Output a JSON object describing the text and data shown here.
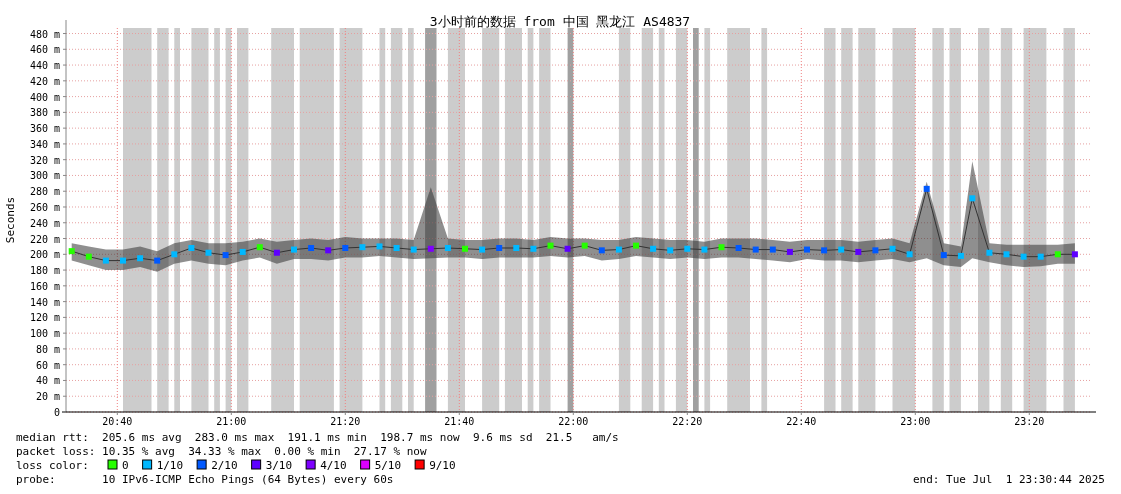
{
  "chart_data": {
    "type": "scatter",
    "marker": "square",
    "title": "3小时前的数据 from 中国 黑龙江 AS4837",
    "ylabel": "Seconds",
    "legend_title": "loss color:",
    "legend": "bottom",
    "grid": true,
    "xlim": [
      "2025-07-01T20:31",
      "2025-07-01T23:31"
    ],
    "xticks": [
      {
        "value": "2025-07-01T20:40",
        "label": "20:40"
      },
      {
        "value": "2025-07-01T21:00",
        "label": "21:00"
      },
      {
        "value": "2025-07-01T21:20",
        "label": "21:20"
      },
      {
        "value": "2025-07-01T21:40",
        "label": "21:40"
      },
      {
        "value": "2025-07-01T22:00",
        "label": "22:00"
      },
      {
        "value": "2025-07-01T22:20",
        "label": "22:20"
      },
      {
        "value": "2025-07-01T22:40",
        "label": "22:40"
      },
      {
        "value": "2025-07-01T23:00",
        "label": "23:00"
      },
      {
        "value": "2025-07-01T23:20",
        "label": "23:20"
      }
    ],
    "ylim": [
      0,
      487
    ],
    "yticks": [
      0,
      {
        "value": 20,
        "label": "20 m"
      },
      {
        "value": 40,
        "label": "40 m"
      },
      {
        "value": 60,
        "label": "60 m"
      },
      {
        "value": 80,
        "label": "80 m"
      },
      {
        "value": 100,
        "label": "100 m"
      },
      {
        "value": 120,
        "label": "120 m"
      },
      {
        "value": 140,
        "label": "140 m"
      },
      {
        "value": 160,
        "label": "160 m"
      },
      {
        "value": 180,
        "label": "180 m"
      },
      {
        "value": 200,
        "label": "200 m"
      },
      {
        "value": 220,
        "label": "220 m"
      },
      {
        "value": 240,
        "label": "240 m"
      },
      {
        "value": 260,
        "label": "260 m"
      },
      {
        "value": 280,
        "label": "280 m"
      },
      {
        "value": 300,
        "label": "300 m"
      },
      {
        "value": 320,
        "label": "320 m"
      },
      {
        "value": 340,
        "label": "340 m"
      },
      {
        "value": 360,
        "label": "360 m"
      },
      {
        "value": 380,
        "label": "380 m"
      },
      {
        "value": 400,
        "label": "400 m"
      },
      {
        "value": 420,
        "label": "420 m"
      },
      {
        "value": 440,
        "label": "440 m"
      },
      {
        "value": 460,
        "label": "460 m"
      },
      {
        "value": 480,
        "label": "480 m"
      }
    ],
    "bands": [
      {
        "axis": "x",
        "from": "2025-07-01T20:41",
        "to": "2025-07-01T20:46",
        "color": "#cccccc"
      },
      {
        "axis": "x",
        "from": "2025-07-01T20:47",
        "to": "2025-07-01T20:49",
        "color": "#cccccc"
      },
      {
        "axis": "x",
        "from": "2025-07-01T20:50",
        "to": "2025-07-01T20:51",
        "color": "#cccccc"
      },
      {
        "axis": "x",
        "from": "2025-07-01T20:53",
        "to": "2025-07-01T20:56",
        "color": "#cccccc"
      },
      {
        "axis": "x",
        "from": "2025-07-01T20:57",
        "to": "2025-07-01T20:58",
        "color": "#cccccc"
      },
      {
        "axis": "x",
        "from": "2025-07-01T20:59",
        "to": "2025-07-01T21:00",
        "color": "#cccccc"
      },
      {
        "axis": "x",
        "from": "2025-07-01T21:01",
        "to": "2025-07-01T21:03",
        "color": "#cccccc"
      },
      {
        "axis": "x",
        "from": "2025-07-01T21:07",
        "to": "2025-07-01T21:11",
        "color": "#cccccc"
      },
      {
        "axis": "x",
        "from": "2025-07-01T21:12",
        "to": "2025-07-01T21:18",
        "color": "#cccccc"
      },
      {
        "axis": "x",
        "from": "2025-07-01T21:19",
        "to": "2025-07-01T21:23",
        "color": "#cccccc"
      },
      {
        "axis": "x",
        "from": "2025-07-01T21:26",
        "to": "2025-07-01T21:27",
        "color": "#cccccc"
      },
      {
        "axis": "x",
        "from": "2025-07-01T21:28",
        "to": "2025-07-01T21:30",
        "color": "#cccccc"
      },
      {
        "axis": "x",
        "from": "2025-07-01T21:31",
        "to": "2025-07-01T21:32",
        "color": "#cccccc"
      },
      {
        "axis": "x",
        "from": "2025-07-01T21:34",
        "to": "2025-07-01T21:36",
        "color": "#a0a0a0"
      },
      {
        "axis": "x",
        "from": "2025-07-01T21:38",
        "to": "2025-07-01T21:41",
        "color": "#cccccc"
      },
      {
        "axis": "x",
        "from": "2025-07-01T21:44",
        "to": "2025-07-01T21:47",
        "color": "#cccccc"
      },
      {
        "axis": "x",
        "from": "2025-07-01T21:48",
        "to": "2025-07-01T21:51",
        "color": "#cccccc"
      },
      {
        "axis": "x",
        "from": "2025-07-01T21:52",
        "to": "2025-07-01T21:53",
        "color": "#cccccc"
      },
      {
        "axis": "x",
        "from": "2025-07-01T21:54",
        "to": "2025-07-01T21:56",
        "color": "#cccccc"
      },
      {
        "axis": "x",
        "from": "2025-07-01T21:59",
        "to": "2025-07-01T22:00",
        "color": "#a0a0a0"
      },
      {
        "axis": "x",
        "from": "2025-07-01T22:08",
        "to": "2025-07-01T22:10",
        "color": "#cccccc"
      },
      {
        "axis": "x",
        "from": "2025-07-01T22:12",
        "to": "2025-07-01T22:14",
        "color": "#cccccc"
      },
      {
        "axis": "x",
        "from": "2025-07-01T22:15",
        "to": "2025-07-01T22:16",
        "color": "#cccccc"
      },
      {
        "axis": "x",
        "from": "2025-07-01T22:18",
        "to": "2025-07-01T22:20",
        "color": "#cccccc"
      },
      {
        "axis": "x",
        "from": "2025-07-01T22:21",
        "to": "2025-07-01T22:22",
        "color": "#a0a0a0"
      },
      {
        "axis": "x",
        "from": "2025-07-01T22:23",
        "to": "2025-07-01T22:24",
        "color": "#cccccc"
      },
      {
        "axis": "x",
        "from": "2025-07-01T22:27",
        "to": "2025-07-01T22:31",
        "color": "#cccccc"
      },
      {
        "axis": "x",
        "from": "2025-07-01T22:33",
        "to": "2025-07-01T22:34",
        "color": "#cccccc"
      },
      {
        "axis": "x",
        "from": "2025-07-01T22:44",
        "to": "2025-07-01T22:46",
        "color": "#cccccc"
      },
      {
        "axis": "x",
        "from": "2025-07-01T22:47",
        "to": "2025-07-01T22:49",
        "color": "#cccccc"
      },
      {
        "axis": "x",
        "from": "2025-07-01T22:50",
        "to": "2025-07-01T22:53",
        "color": "#cccccc"
      },
      {
        "axis": "x",
        "from": "2025-07-01T22:56",
        "to": "2025-07-01T23:00",
        "color": "#cccccc"
      },
      {
        "axis": "x",
        "from": "2025-07-01T23:03",
        "to": "2025-07-01T23:05",
        "color": "#cccccc"
      },
      {
        "axis": "x",
        "from": "2025-07-01T23:06",
        "to": "2025-07-01T23:08",
        "color": "#cccccc"
      },
      {
        "axis": "x",
        "from": "2025-07-01T23:11",
        "to": "2025-07-01T23:13",
        "color": "#cccccc"
      },
      {
        "axis": "x",
        "from": "2025-07-01T23:15",
        "to": "2025-07-01T23:17",
        "color": "#cccccc"
      },
      {
        "axis": "x",
        "from": "2025-07-01T23:19",
        "to": "2025-07-01T23:23",
        "color": "#cccccc"
      },
      {
        "axis": "x",
        "from": "2025-07-01T23:26",
        "to": "2025-07-01T23:28",
        "color": "#cccccc"
      }
    ],
    "series": [
      {
        "type": "line",
        "marker": "none",
        "color": "#333333",
        "x": [
          "2025-07-01T20:32",
          "2025-07-01T20:35",
          "2025-07-01T20:38",
          "2025-07-01T20:41",
          "2025-07-01T20:44",
          "2025-07-01T20:47",
          "2025-07-01T20:50",
          "2025-07-01T20:53",
          "2025-07-01T20:56",
          "2025-07-01T20:59",
          "2025-07-01T21:02",
          "2025-07-01T21:05",
          "2025-07-01T21:08",
          "2025-07-01T21:11",
          "2025-07-01T21:14",
          "2025-07-01T21:17",
          "2025-07-01T21:20",
          "2025-07-01T21:23",
          "2025-07-01T21:26",
          "2025-07-01T21:29",
          "2025-07-01T21:32",
          "2025-07-01T21:35",
          "2025-07-01T21:38",
          "2025-07-01T21:41",
          "2025-07-01T21:44",
          "2025-07-01T21:47",
          "2025-07-01T21:50",
          "2025-07-01T21:53",
          "2025-07-01T21:56",
          "2025-07-01T21:59",
          "2025-07-01T22:02",
          "2025-07-01T22:05",
          "2025-07-01T22:08",
          "2025-07-01T22:11",
          "2025-07-01T22:14",
          "2025-07-01T22:17",
          "2025-07-01T22:20",
          "2025-07-01T22:23",
          "2025-07-01T22:26",
          "2025-07-01T22:29",
          "2025-07-01T22:32",
          "2025-07-01T22:35",
          "2025-07-01T22:38",
          "2025-07-01T22:41",
          "2025-07-01T22:44",
          "2025-07-01T22:47",
          "2025-07-01T22:50",
          "2025-07-01T22:53",
          "2025-07-01T22:56",
          "2025-07-01T22:59",
          "2025-07-01T23:02",
          "2025-07-01T23:05",
          "2025-07-01T23:08",
          "2025-07-01T23:10",
          "2025-07-01T23:13",
          "2025-07-01T23:16",
          "2025-07-01T23:19",
          "2025-07-01T23:22",
          "2025-07-01T23:25",
          "2025-07-01T23:28"
        ],
        "values": [
          204,
          197,
          192,
          192,
          195,
          192,
          200,
          208,
          202,
          199,
          203,
          209,
          202,
          206,
          208,
          205,
          208,
          209,
          210,
          208,
          206,
          207,
          208,
          207,
          206,
          208,
          208,
          207,
          211,
          207,
          211,
          205,
          206,
          211,
          207,
          205,
          207,
          206,
          209,
          208,
          206,
          206,
          203,
          206,
          205,
          206,
          203,
          205,
          207,
          200,
          283,
          199,
          198,
          271,
          202,
          200,
          197,
          197,
          200,
          200
        ],
        "lower": [
          192,
          186,
          180,
          180,
          184,
          178,
          188,
          192,
          188,
          186,
          192,
          196,
          188,
          194,
          194,
          192,
          196,
          196,
          198,
          196,
          194,
          195,
          196,
          196,
          194,
          196,
          196,
          196,
          198,
          196,
          198,
          192,
          194,
          198,
          196,
          194,
          196,
          194,
          196,
          196,
          194,
          192,
          190,
          194,
          192,
          192,
          190,
          192,
          194,
          190,
          195,
          186,
          184,
          195,
          190,
          186,
          184,
          185,
          188,
          188
        ],
        "upper": [
          214,
          210,
          206,
          206,
          210,
          204,
          214,
          218,
          214,
          214,
          216,
          220,
          216,
          218,
          220,
          218,
          222,
          220,
          220,
          220,
          218,
          285,
          220,
          218,
          218,
          220,
          220,
          218,
          222,
          220,
          220,
          218,
          218,
          222,
          220,
          218,
          218,
          216,
          220,
          220,
          220,
          218,
          216,
          218,
          218,
          218,
          216,
          218,
          220,
          214,
          292,
          214,
          210,
          318,
          214,
          212,
          212,
          212,
          212,
          214
        ]
      },
      {
        "name": "0",
        "color": "#26ff00",
        "x": [
          "2025-07-01T20:32",
          "2025-07-01T20:35",
          "2025-07-01T21:05",
          "2025-07-01T21:41",
          "2025-07-01T21:56",
          "2025-07-01T22:02",
          "2025-07-01T22:11",
          "2025-07-01T22:26",
          "2025-07-01T23:25"
        ],
        "values": [
          204,
          197,
          209,
          207,
          211,
          211,
          211,
          209,
          200
        ]
      },
      {
        "name": "1/10",
        "color": "#00b8ff",
        "x": [
          "2025-07-01T20:38",
          "2025-07-01T20:41",
          "2025-07-01T20:44",
          "2025-07-01T20:50",
          "2025-07-01T20:53",
          "2025-07-01T20:56",
          "2025-07-01T21:02",
          "2025-07-01T21:11",
          "2025-07-01T21:23",
          "2025-07-01T21:26",
          "2025-07-01T21:29",
          "2025-07-01T21:32",
          "2025-07-01T21:38",
          "2025-07-01T21:44",
          "2025-07-01T21:50",
          "2025-07-01T21:53",
          "2025-07-01T22:08",
          "2025-07-01T22:14",
          "2025-07-01T22:17",
          "2025-07-01T22:20",
          "2025-07-01T22:23",
          "2025-07-01T22:47",
          "2025-07-01T22:56",
          "2025-07-01T22:59",
          "2025-07-01T23:08",
          "2025-07-01T23:10",
          "2025-07-01T23:13",
          "2025-07-01T23:16",
          "2025-07-01T23:19",
          "2025-07-01T23:22"
        ],
        "values": [
          192,
          192,
          195,
          200,
          208,
          202,
          203,
          206,
          209,
          210,
          208,
          206,
          208,
          206,
          208,
          207,
          206,
          207,
          205,
          207,
          206,
          206,
          207,
          200,
          198,
          271,
          202,
          200,
          197,
          197
        ]
      },
      {
        "name": "2/10",
        "color": "#0059ff",
        "x": [
          "2025-07-01T20:47",
          "2025-07-01T20:59",
          "2025-07-01T21:14",
          "2025-07-01T21:20",
          "2025-07-01T21:47",
          "2025-07-01T22:05",
          "2025-07-01T22:29",
          "2025-07-01T22:32",
          "2025-07-01T22:35",
          "2025-07-01T22:41",
          "2025-07-01T22:44",
          "2025-07-01T22:53",
          "2025-07-01T23:02",
          "2025-07-01T23:05"
        ],
        "values": [
          192,
          199,
          208,
          208,
          208,
          205,
          208,
          206,
          206,
          206,
          205,
          205,
          283,
          199
        ]
      },
      {
        "name": "3/10",
        "color": "#5e00ff",
        "x": [
          "2025-07-01T21:08",
          "2025-07-01T21:17",
          "2025-07-01T21:59",
          "2025-07-01T22:38",
          "2025-07-01T22:50",
          "2025-07-01T23:28"
        ],
        "values": [
          202,
          205,
          207,
          203,
          203,
          200
        ]
      },
      {
        "name": "4/10",
        "color": "#7e00ff",
        "x": [
          "2025-07-01T21:35"
        ],
        "values": [
          207
        ]
      },
      {
        "name": "5/10",
        "color": "#dd00ff"
      },
      {
        "name": "9/10",
        "color": "#ff0000"
      }
    ],
    "annotations": [
      "median rtt:  205.6 ms avg  283.0 ms max  191.1 ms min  198.7 ms now  9.6 ms sd  21.5   am/s",
      "packet loss: 10.35 % avg  34.33 % max  0.00 % min  27.17 % now",
      "probe:       10 IPv6-ICMP Echo Pings (64 Bytes) every 60s",
      "end: Tue Jul  1 23:30:44 2025"
    ]
  }
}
